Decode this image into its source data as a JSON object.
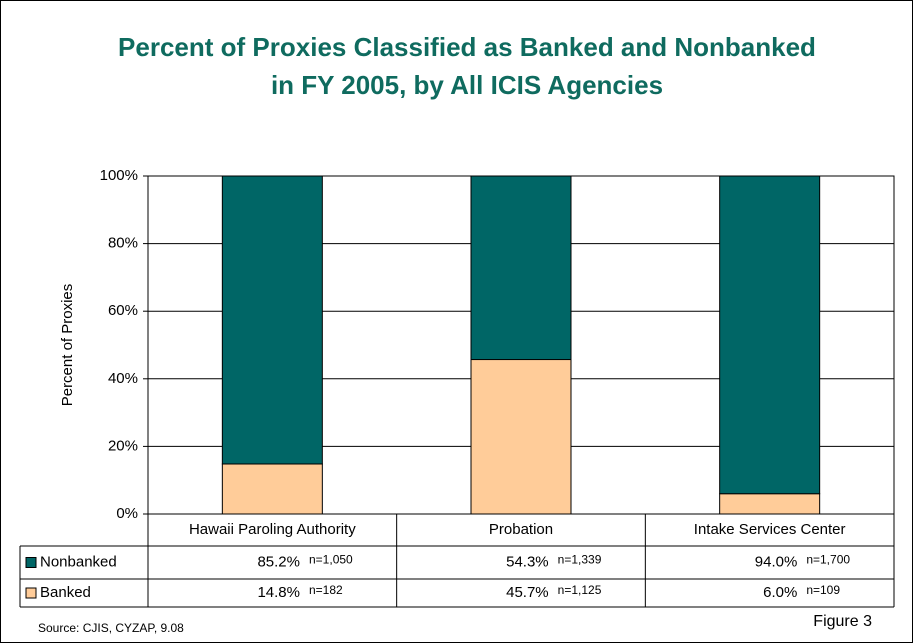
{
  "chart_data": {
    "type": "stacked_bar",
    "title": "Percent of Proxies Classified as Banked and Nonbanked in FY 2005, by All ICIS Agencies",
    "y_label": "Percent of Proxies",
    "categories": [
      "Hawaii Paroling Authority",
      "Probation",
      "Intake Services Center"
    ],
    "series": [
      {
        "name": "Nonbanked",
        "color": "#006666",
        "values": [
          85.2,
          54.3,
          94.0
        ],
        "value_labels": [
          "85.2%",
          "54.3%",
          "94.0%"
        ],
        "n_labels": [
          "n=1,050",
          "n=1,339",
          "n=1,700"
        ]
      },
      {
        "name": "Banked",
        "color": "#ffcc99",
        "values": [
          14.8,
          45.7,
          6.0
        ],
        "value_labels": [
          "14.8%",
          "45.7%",
          "6.0%"
        ],
        "n_labels": [
          "n=182",
          "n=1,125",
          "n=109"
        ]
      }
    ],
    "ylim": [
      0,
      100
    ],
    "yticks": [
      {
        "value": 0,
        "label": "0%"
      },
      {
        "value": 20,
        "label": "20%"
      },
      {
        "value": 40,
        "label": "40%"
      },
      {
        "value": 60,
        "label": "60%"
      },
      {
        "value": 80,
        "label": "80%"
      },
      {
        "value": 100,
        "label": "100%"
      }
    ],
    "grid": true,
    "source": "Source: CJIS, CYZAP, 9.08",
    "figure_label": "Figure 3"
  }
}
